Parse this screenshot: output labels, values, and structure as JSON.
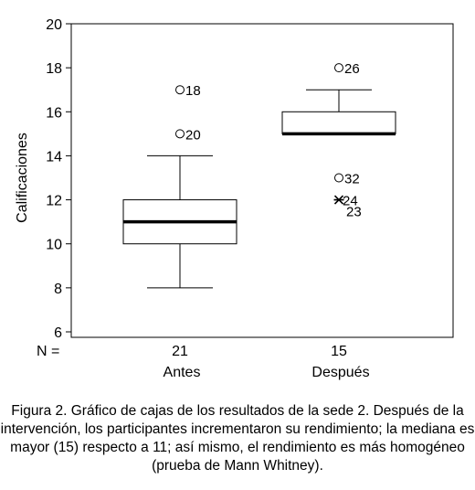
{
  "chart_data": {
    "type": "boxplot",
    "ylabel": "Calificaciones",
    "ylim": [
      6,
      20
    ],
    "yticks": [
      6,
      8,
      10,
      12,
      14,
      16,
      18,
      20
    ],
    "grid": false,
    "n_label": "N =",
    "groups": [
      {
        "category": "Antes",
        "n": "21",
        "whisker_low": 8,
        "q1": 10,
        "median": 11,
        "q3": 12,
        "whisker_high": 14,
        "outliers": [
          {
            "value": 17,
            "label": "18",
            "marker": "circle"
          },
          {
            "value": 15,
            "label": "20",
            "marker": "circle"
          }
        ]
      },
      {
        "category": "Después",
        "n": "15",
        "whisker_low": 15,
        "q1": 15,
        "median": 15,
        "q3": 16,
        "whisker_high": 17,
        "outliers": [
          {
            "value": 18,
            "label": "26",
            "marker": "circle"
          },
          {
            "value": 13,
            "label": "32",
            "marker": "circle"
          },
          {
            "value": 12,
            "label": "24",
            "marker": "star"
          },
          {
            "value": 12,
            "label": "23",
            "marker": "none"
          }
        ]
      }
    ]
  },
  "caption": "Figura 2. Gráfico de cajas de los resultados de la sede 2.  Después de la intervención, los participantes incrementaron su rendimiento; la mediana es mayor (15) respecto a 11; así mismo, el rendimiento es más homogéneo (prueba de Mann Whitney)."
}
